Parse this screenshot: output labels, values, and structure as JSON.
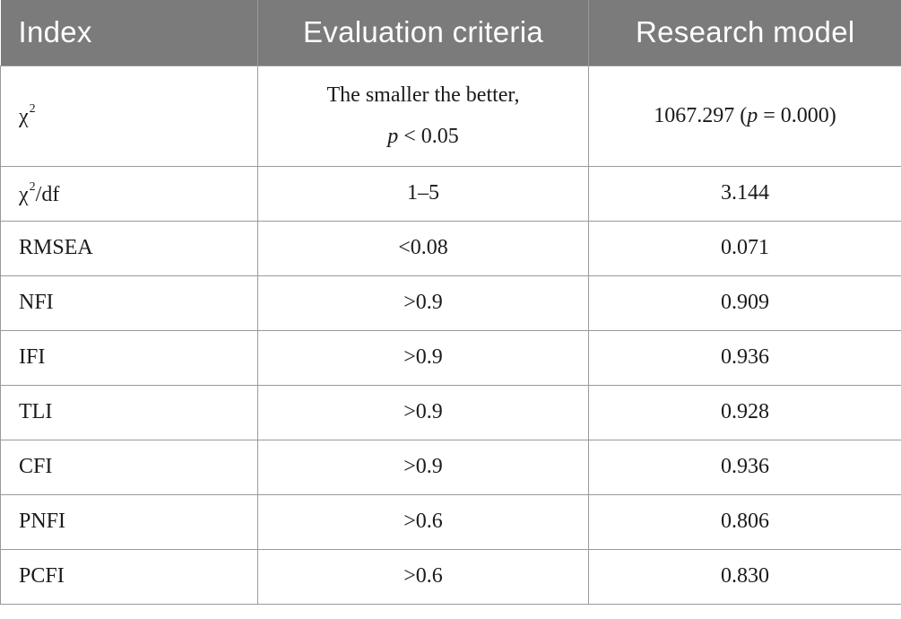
{
  "table": {
    "headers": [
      "Index",
      "Evaluation criteria",
      "Research model"
    ],
    "row0": {
      "index": {
        "symbol": "χ",
        "sup": "2"
      },
      "criteria": {
        "line1": "The smaller the better,",
        "p_symbol": "p",
        "p_cond": " < 0.05"
      },
      "model": {
        "value": "1067.297 (",
        "p_symbol": "p",
        "p_val": " = 0.000)"
      }
    },
    "row1": {
      "index": {
        "symbol": "χ",
        "sup": "2",
        "rest": "/df"
      },
      "criteria": "1–5",
      "model": "3.144"
    },
    "rows": [
      {
        "index": "RMSEA",
        "criteria": "<0.08",
        "model": "0.071"
      },
      {
        "index": "NFI",
        "criteria": ">0.9",
        "model": "0.909"
      },
      {
        "index": "IFI",
        "criteria": ">0.9",
        "model": "0.936"
      },
      {
        "index": "TLI",
        "criteria": ">0.9",
        "model": "0.928"
      },
      {
        "index": "CFI",
        "criteria": ">0.9",
        "model": "0.936"
      },
      {
        "index": "PNFI",
        "criteria": ">0.6",
        "model": "0.806"
      },
      {
        "index": "PCFI",
        "criteria": ">0.6",
        "model": "0.830"
      }
    ]
  },
  "colors": {
    "header_bg": "#7b7b7b",
    "header_text": "#ffffff",
    "grid": "#9a9a9a"
  }
}
